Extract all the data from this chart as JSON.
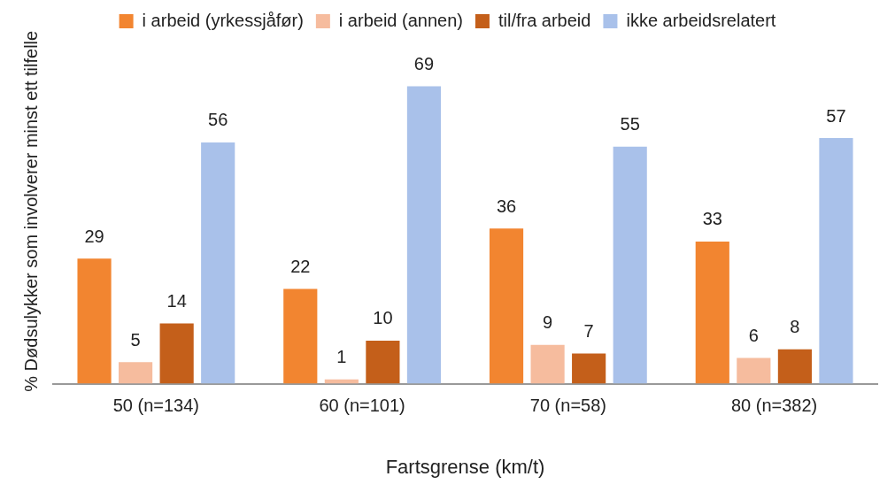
{
  "chart_data": {
    "type": "bar",
    "xlabel": "Fartsgrense (km/t)",
    "ylabel": "% Dødsulykker som involverer minst ett tilfelle",
    "categories": [
      "50 (n=134)",
      "60 (n=101)",
      "70 (n=58)",
      "80 (n=382)"
    ],
    "series": [
      {
        "name": "i arbeid (yrkessjåfør)",
        "color": "#f28530",
        "values": [
          29,
          22,
          36,
          33
        ]
      },
      {
        "name": "i arbeid (annen)",
        "color": "#f6bc9e",
        "values": [
          5,
          1,
          9,
          6
        ]
      },
      {
        "name": "til/fra arbeid",
        "color": "#c45f1a",
        "values": [
          14,
          10,
          7,
          8
        ]
      },
      {
        "name": "ikke arbeidsrelatert",
        "color": "#a9c1ea",
        "values": [
          56,
          69,
          55,
          57
        ]
      }
    ],
    "data_labels": true,
    "legend": "top",
    "grid": false
  }
}
